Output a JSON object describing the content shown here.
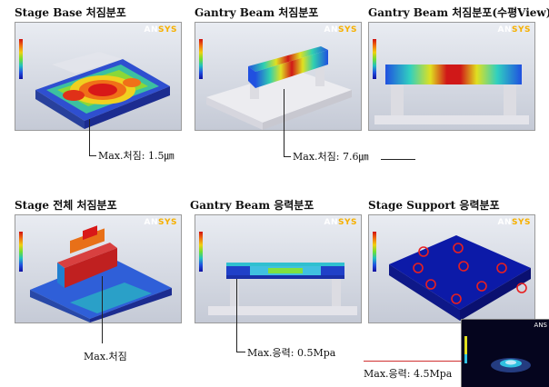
{
  "titles": {
    "p1": "Stage Base 처짐분포",
    "p2": "Gantry Beam 처짐분포",
    "p3": "Gantry Beam 처짐분포(수평View)",
    "p4": "Stage 전체 처짐분포",
    "p5": "Gantry Beam 응력분포",
    "p6": "Stage Support 응력분포"
  },
  "logo": {
    "prefix": "AN",
    "suffix": "SYS",
    "inset": "ANS"
  },
  "labels": {
    "p1": "Max.처짐: 1.5㎛",
    "p2": "Max.처짐: 7.6㎛",
    "p4": "Max.처짐",
    "p5": "Max.응력: 0.5Mpa",
    "p6": "Max.응력: 4.5Mpa"
  },
  "colors": {
    "max": "#d01010",
    "min": "#1010a0",
    "marker": "#e02020"
  }
}
